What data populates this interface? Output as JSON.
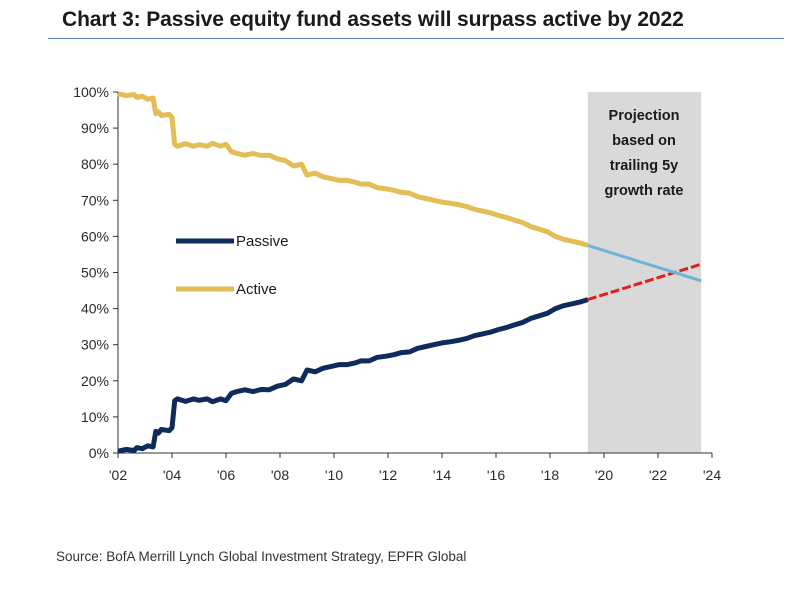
{
  "header": {
    "title": "Chart 3: Passive equity fund assets will surpass active by 2022"
  },
  "footer": {
    "source": "Source: BofA Merrill Lynch Global Investment Strategy, EPFR Global"
  },
  "colors": {
    "passive": "#0f2b5b",
    "active": "#e3bd55",
    "active_projection": "#6fb3d6",
    "passive_projection": "#e11e1e",
    "projection_band": "#d9d9d9",
    "axis": "#333333"
  },
  "chart_data": {
    "type": "line",
    "title": "Chart 3: Passive equity fund assets will surpass active by 2022",
    "xlabel": "",
    "ylabel": "",
    "xlim": [
      2002,
      2024
    ],
    "ylim": [
      0,
      100
    ],
    "x_ticks": [
      "'02",
      "'04",
      "'06",
      "'08",
      "'10",
      "'12",
      "'14",
      "'16",
      "'18",
      "'20",
      "'22",
      "'24"
    ],
    "y_ticks": [
      "0%",
      "10%",
      "20%",
      "30%",
      "40%",
      "50%",
      "60%",
      "70%",
      "80%",
      "90%",
      "100%"
    ],
    "grid": false,
    "legend_position": "middle-left",
    "projection": {
      "start": 2019.4,
      "end": 2023.6,
      "note_lines": [
        "Projection",
        "based on",
        "trailing 5y",
        "growth rate"
      ]
    },
    "series": [
      {
        "name": "Passive",
        "x": [
          2002.0,
          2002.3,
          2002.6,
          2002.7,
          2002.9,
          2003.1,
          2003.3,
          2003.4,
          2003.5,
          2003.6,
          2003.9,
          2004.0,
          2004.1,
          2004.2,
          2004.5,
          2004.8,
          2005.0,
          2005.3,
          2005.5,
          2005.8,
          2006.0,
          2006.2,
          2006.4,
          2006.7,
          2007.0,
          2007.3,
          2007.6,
          2007.9,
          2008.2,
          2008.5,
          2008.8,
          2009.0,
          2009.3,
          2009.6,
          2009.9,
          2010.2,
          2010.5,
          2010.8,
          2011.0,
          2011.3,
          2011.6,
          2011.9,
          2012.2,
          2012.5,
          2012.8,
          2013.1,
          2013.4,
          2013.7,
          2014.0,
          2014.3,
          2014.6,
          2014.9,
          2015.2,
          2015.5,
          2015.8,
          2016.1,
          2016.4,
          2016.7,
          2017.0,
          2017.3,
          2017.6,
          2017.9,
          2018.2,
          2018.5,
          2018.8,
          2019.1,
          2019.4
        ],
        "values": [
          0.5,
          1.0,
          0.7,
          1.5,
          1.2,
          2.0,
          1.7,
          6.0,
          5.5,
          6.5,
          6.2,
          7.0,
          14.5,
          15.0,
          14.3,
          15.0,
          14.6,
          15.0,
          14.2,
          15.0,
          14.5,
          16.5,
          17.0,
          17.5,
          17.0,
          17.6,
          17.5,
          18.5,
          19.0,
          20.5,
          20.0,
          23.0,
          22.5,
          23.5,
          24.0,
          24.5,
          24.5,
          25.0,
          25.5,
          25.5,
          26.5,
          26.8,
          27.2,
          27.8,
          28.0,
          29.0,
          29.5,
          30.0,
          30.5,
          30.8,
          31.2,
          31.7,
          32.5,
          33.0,
          33.5,
          34.2,
          34.8,
          35.5,
          36.2,
          37.3,
          38.0,
          38.7,
          40.0,
          40.8,
          41.3,
          41.8,
          42.5
        ]
      },
      {
        "name": "Active",
        "x": [
          2002.0,
          2002.3,
          2002.6,
          2002.7,
          2002.9,
          2003.1,
          2003.3,
          2003.4,
          2003.5,
          2003.6,
          2003.9,
          2004.0,
          2004.1,
          2004.2,
          2004.5,
          2004.8,
          2005.0,
          2005.3,
          2005.5,
          2005.8,
          2006.0,
          2006.2,
          2006.4,
          2006.7,
          2007.0,
          2007.3,
          2007.6,
          2007.9,
          2008.2,
          2008.5,
          2008.8,
          2009.0,
          2009.3,
          2009.6,
          2009.9,
          2010.2,
          2010.5,
          2010.8,
          2011.0,
          2011.3,
          2011.6,
          2011.9,
          2012.2,
          2012.5,
          2012.8,
          2013.1,
          2013.4,
          2013.7,
          2014.0,
          2014.3,
          2014.6,
          2014.9,
          2015.2,
          2015.5,
          2015.8,
          2016.1,
          2016.4,
          2016.7,
          2017.0,
          2017.3,
          2017.6,
          2017.9,
          2018.2,
          2018.5,
          2018.8,
          2019.1,
          2019.4
        ],
        "values": [
          99.5,
          99.0,
          99.3,
          98.5,
          98.8,
          98.0,
          98.3,
          94.0,
          94.5,
          93.5,
          93.8,
          93.0,
          85.5,
          85.0,
          85.7,
          85.0,
          85.4,
          85.0,
          85.8,
          85.0,
          85.5,
          83.5,
          83.0,
          82.5,
          83.0,
          82.4,
          82.5,
          81.5,
          81.0,
          79.5,
          80.0,
          77.0,
          77.5,
          76.5,
          76.0,
          75.5,
          75.5,
          75.0,
          74.5,
          74.5,
          73.5,
          73.2,
          72.8,
          72.2,
          72.0,
          71.0,
          70.5,
          70.0,
          69.5,
          69.2,
          68.8,
          68.3,
          67.5,
          67.0,
          66.5,
          65.8,
          65.2,
          64.5,
          63.8,
          62.7,
          62.0,
          61.3,
          60.0,
          59.2,
          58.7,
          58.2,
          57.5
        ]
      },
      {
        "x": [
          2019.4,
          2023.6
        ],
        "values": [
          42.5,
          52.3
        ]
      },
      {
        "x": [
          2019.4,
          2023.6
        ],
        "values": [
          57.5,
          47.7
        ]
      }
    ]
  }
}
